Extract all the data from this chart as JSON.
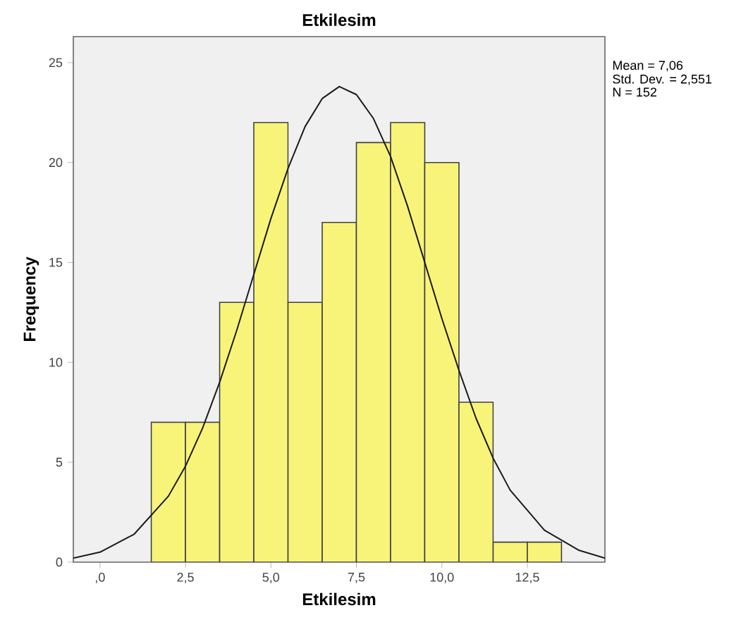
{
  "chart_data": {
    "type": "histogram",
    "title": "Etkilesim",
    "xlabel": "Etkilesim",
    "ylabel": "Frequency",
    "annotations": [
      "Mean = 7,06",
      "Std. Dev. = 2,551",
      "N = 152"
    ],
    "xlim": [
      -0.78,
      14.77
    ],
    "ylim": [
      0,
      26.3
    ],
    "xticks": [
      {
        "value": 0,
        "label": ",0"
      },
      {
        "value": 2.5,
        "label": "2,5"
      },
      {
        "value": 5,
        "label": "5,0"
      },
      {
        "value": 7.5,
        "label": "7,5"
      },
      {
        "value": 10,
        "label": "10,0"
      },
      {
        "value": 12.5,
        "label": "12,5"
      }
    ],
    "yticks": [
      0,
      5,
      10,
      15,
      20,
      25
    ],
    "series": [
      {
        "color": "#f8f47a",
        "bins": [
          1.5,
          2.5,
          3.5,
          4.5,
          5.5,
          6.5,
          7.5,
          8.5,
          9.5,
          10.5,
          11.5,
          12.5,
          13.5
        ],
        "values": [
          7,
          7,
          13,
          22,
          13,
          17,
          21,
          22,
          20,
          8,
          1,
          1
        ]
      },
      {
        "type": "line",
        "color": "#1a1a1a",
        "x": [
          -0.78,
          0,
          1,
          2,
          2.5,
          3,
          3.5,
          4,
          4.5,
          5,
          5.5,
          6,
          6.5,
          7,
          7.5,
          8,
          8.5,
          9,
          9.5,
          10,
          10.5,
          11,
          11.5,
          12,
          13,
          14,
          14.77
        ],
        "values": [
          0.2,
          0.5,
          1.4,
          3.3,
          4.8,
          6.7,
          9.0,
          11.6,
          14.4,
          17.2,
          19.7,
          21.8,
          23.2,
          23.8,
          23.4,
          22.2,
          20.3,
          17.8,
          15.0,
          12.2,
          9.6,
          7.2,
          5.2,
          3.6,
          1.6,
          0.6,
          0.2
        ]
      }
    ]
  }
}
